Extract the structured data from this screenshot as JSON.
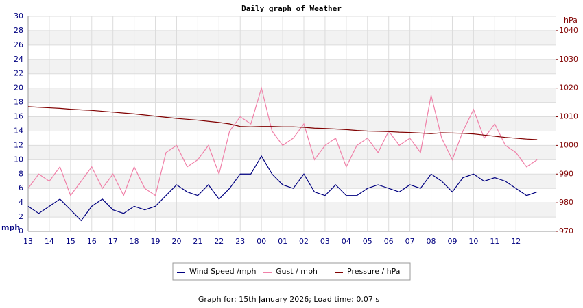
{
  "chart_data": {
    "type": "line",
    "title": "Daily graph of Weather",
    "y_label": "mph",
    "y2_label": "hPa",
    "footer": "Graph for: 15th January 2026; Load time: 0.07 s",
    "x": [
      0,
      0.5,
      1,
      1.5,
      2,
      2.5,
      3,
      3.5,
      4,
      4.5,
      5,
      5.5,
      6,
      6.5,
      7,
      7.5,
      8,
      8.5,
      9,
      9.5,
      10,
      10.5,
      11,
      11.5,
      12,
      12.5,
      13,
      13.5,
      14,
      14.5,
      15,
      15.5,
      16,
      16.5,
      17,
      17.5,
      18,
      18.5,
      19,
      19.5,
      20,
      20.5,
      21,
      21.5,
      22,
      22.5,
      23,
      23.5,
      24
    ],
    "xlim": [
      0,
      24.9
    ],
    "xticks": [
      {
        "value": 0,
        "label": "13"
      },
      {
        "value": 1,
        "label": "14"
      },
      {
        "value": 2,
        "label": "15"
      },
      {
        "value": 3,
        "label": "16"
      },
      {
        "value": 4,
        "label": "17"
      },
      {
        "value": 5,
        "label": "18"
      },
      {
        "value": 6,
        "label": "19"
      },
      {
        "value": 7,
        "label": "20"
      },
      {
        "value": 8,
        "label": "21"
      },
      {
        "value": 9,
        "label": "22"
      },
      {
        "value": 10,
        "label": "23"
      },
      {
        "value": 11,
        "label": "00"
      },
      {
        "value": 12,
        "label": "01"
      },
      {
        "value": 13,
        "label": "02"
      },
      {
        "value": 14,
        "label": "03"
      },
      {
        "value": 15,
        "label": "04"
      },
      {
        "value": 16,
        "label": "05"
      },
      {
        "value": 17,
        "label": "06"
      },
      {
        "value": 18,
        "label": "07"
      },
      {
        "value": 19,
        "label": "08"
      },
      {
        "value": 20,
        "label": "09"
      },
      {
        "value": 21,
        "label": "10"
      },
      {
        "value": 22,
        "label": "11"
      },
      {
        "value": 23,
        "label": "12"
      }
    ],
    "ylim": [
      0,
      30
    ],
    "yticks": [
      0,
      2,
      4,
      6,
      8,
      10,
      12,
      14,
      16,
      18,
      20,
      22,
      24,
      26,
      28,
      30
    ],
    "y2lim": [
      970,
      1045
    ],
    "y2ticks": [
      970,
      980,
      990,
      1000,
      1010,
      1020,
      1030,
      1040
    ],
    "grid": true,
    "series": [
      {
        "name": "Wind Speed /mph",
        "color": "#000080",
        "values": [
          3.5,
          2.5,
          3.5,
          4.5,
          3,
          1.5,
          3.5,
          4.5,
          3,
          2.5,
          3.5,
          3,
          3.5,
          5,
          6.5,
          5.5,
          5,
          6.5,
          4.5,
          6,
          8,
          8,
          10.5,
          8,
          6.5,
          6,
          8,
          5.5,
          5,
          6.5,
          5,
          5,
          6,
          6.5,
          6,
          5.5,
          6.5,
          6,
          8,
          7,
          5.5,
          7.5,
          8,
          7,
          7.5,
          7,
          6,
          5,
          5.5
        ]
      },
      {
        "name": "Gust / mph",
        "color": "#f080a8",
        "values": [
          6,
          8,
          7,
          9,
          5,
          7,
          9,
          6,
          8,
          5,
          9,
          6,
          5,
          11,
          12,
          9,
          10,
          12,
          8,
          14,
          16,
          15,
          20,
          14,
          12,
          13,
          15,
          10,
          12,
          13,
          9,
          12,
          13,
          11,
          14,
          12,
          13,
          11,
          19,
          13,
          10,
          14,
          17,
          13,
          15,
          12,
          11,
          9,
          10
        ]
      },
      {
        "name": "Pressure / hPa",
        "color": "#800000",
        "axis": "y2",
        "values": [
          1013.5,
          1013.3,
          1013.1,
          1012.9,
          1012.6,
          1012.4,
          1012.2,
          1011.9,
          1011.6,
          1011.3,
          1011,
          1010.6,
          1010.2,
          1009.8,
          1009.4,
          1009.1,
          1008.8,
          1008.4,
          1008,
          1007.5,
          1006.6,
          1006.5,
          1006.6,
          1006.6,
          1006.5,
          1006.5,
          1006.3,
          1006,
          1005.9,
          1005.7,
          1005.5,
          1005.2,
          1005,
          1004.9,
          1004.8,
          1004.6,
          1004.5,
          1004.3,
          1004.1,
          1004.4,
          1004.3,
          1004.2,
          1004,
          1003.6,
          1003.2,
          1002.8,
          1002.5,
          1002.2,
          1002
        ]
      }
    ]
  }
}
